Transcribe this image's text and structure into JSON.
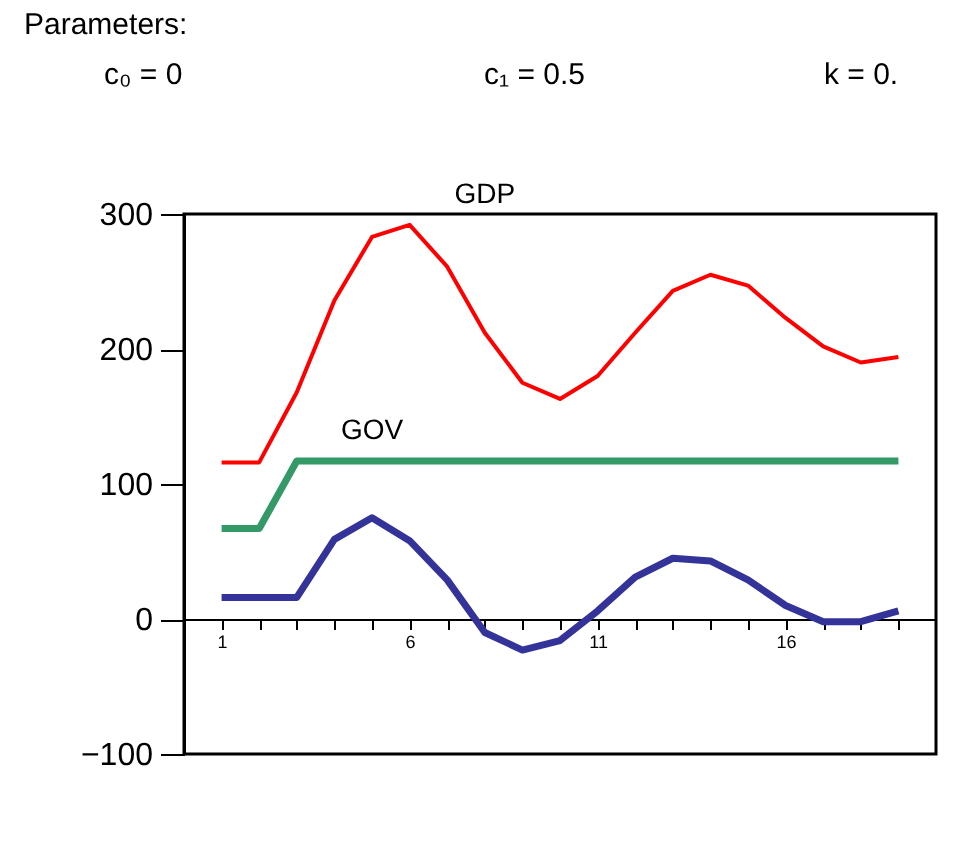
{
  "chart_data": {
    "type": "line",
    "annotations": [
      "Parameters:",
      "c₀ = 0",
      "c₁ = 0.5",
      "k = 0."
    ],
    "categories": [
      "1",
      null,
      null,
      null,
      null,
      "6",
      null,
      null,
      null,
      null,
      "11",
      null,
      null,
      null,
      null,
      "16",
      null,
      null,
      null
    ],
    "series": [
      {
        "name": "GDP",
        "color": "#ff0000",
        "values": [
          116,
          116,
          168,
          236,
          283,
          292,
          261,
          212,
          175,
          163,
          180,
          212,
          243,
          255,
          247,
          223,
          202,
          190,
          194
        ]
      },
      {
        "name": "GOV",
        "color": "#339966",
        "values": [
          67,
          67,
          117,
          117,
          117,
          117,
          117,
          117,
          117,
          117,
          117,
          117,
          117,
          117,
          117,
          117,
          117,
          117,
          117
        ]
      },
      {
        "color": "#333399",
        "values": [
          16,
          16,
          16,
          59,
          75,
          58,
          29,
          -10,
          -23,
          -16,
          6,
          31,
          45,
          43,
          29,
          10,
          -2,
          -2,
          6
        ]
      }
    ],
    "ylim": [
      -100,
      300
    ],
    "yticks": [
      -100,
      0,
      100,
      200,
      300
    ],
    "grid": false,
    "marker": "none",
    "line_style": "solid"
  }
}
